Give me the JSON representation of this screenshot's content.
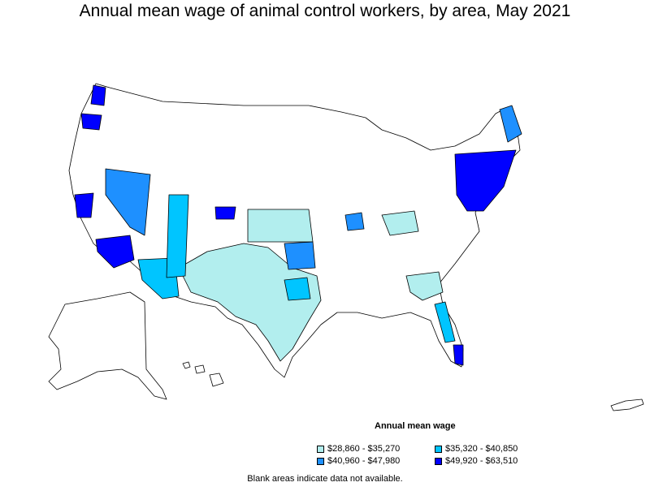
{
  "title": "Annual mean wage of animal control workers, by area, May 2021",
  "legend": {
    "title": "Annual mean wage",
    "items": [
      {
        "label": "$28,860 - $35,270",
        "color": "#b2eeee"
      },
      {
        "label": "$35,320 - $40,850",
        "color": "#00c5ff"
      },
      {
        "label": "$40,960 - $47,980",
        "color": "#1e90ff"
      },
      {
        "label": "$49,920 - $63,510",
        "color": "#0000ff"
      }
    ]
  },
  "footnote": "Blank areas indicate data not available."
}
